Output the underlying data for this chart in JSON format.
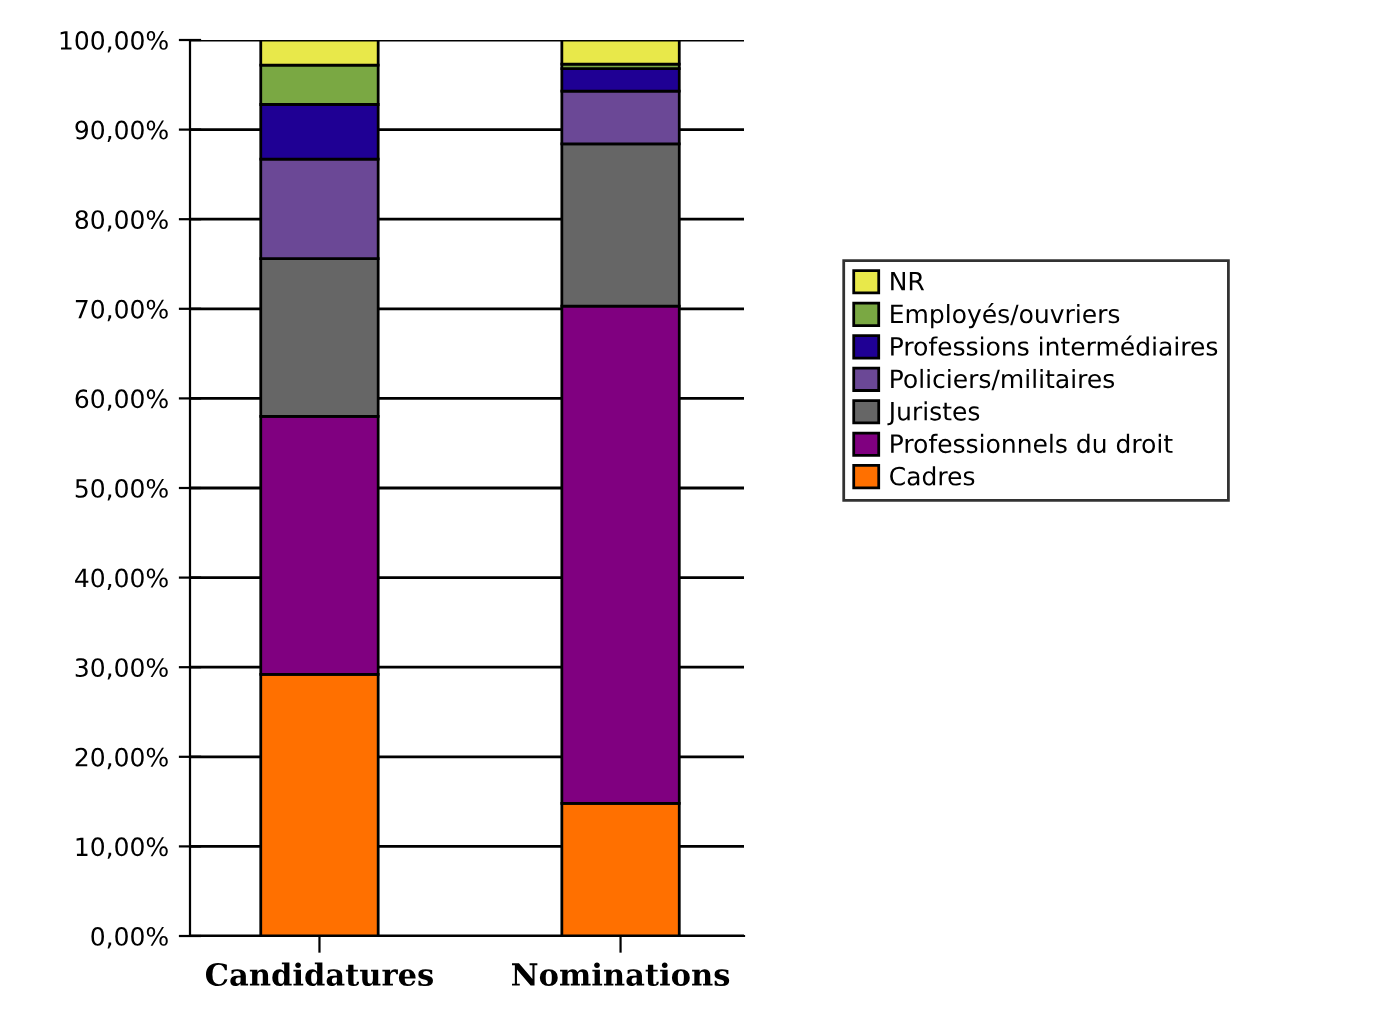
{
  "chart_data": {
    "type": "bar",
    "stacked": true,
    "categories": [
      "Candidatures",
      "Nominations"
    ],
    "series": [
      {
        "name": "Cadres",
        "color": "#ff7000",
        "values": [
          29.2,
          14.8
        ]
      },
      {
        "name": "Professionnels du droit",
        "color": "#800080",
        "values": [
          28.8,
          55.5
        ]
      },
      {
        "name": "Juristes",
        "color": "#666666",
        "values": [
          17.6,
          18.1
        ]
      },
      {
        "name": "Policiers/militaires",
        "color": "#6b4896",
        "values": [
          11.1,
          5.9
        ]
      },
      {
        "name": "Professions intermédiaires",
        "color": "#1f0094",
        "values": [
          6.1,
          2.5
        ]
      },
      {
        "name": "Employés/ouvriers",
        "color": "#7aa843",
        "values": [
          4.4,
          0.5
        ]
      },
      {
        "name": "NR",
        "color": "#e8e84a",
        "values": [
          2.8,
          2.7
        ]
      }
    ],
    "ylim": [
      0,
      100
    ],
    "yticks": [
      {
        "value": 0,
        "label": "0,00%"
      },
      {
        "value": 10,
        "label": "10,00%"
      },
      {
        "value": 20,
        "label": "20,00%"
      },
      {
        "value": 30,
        "label": "30,00%"
      },
      {
        "value": 40,
        "label": "40,00%"
      },
      {
        "value": 50,
        "label": "50,00%"
      },
      {
        "value": 60,
        "label": "60,00%"
      },
      {
        "value": 70,
        "label": "70,00%"
      },
      {
        "value": 80,
        "label": "80,00%"
      },
      {
        "value": 90,
        "label": "90,00%"
      },
      {
        "value": 100,
        "label": "100,00%"
      }
    ],
    "grid": "y",
    "legend": "right"
  }
}
